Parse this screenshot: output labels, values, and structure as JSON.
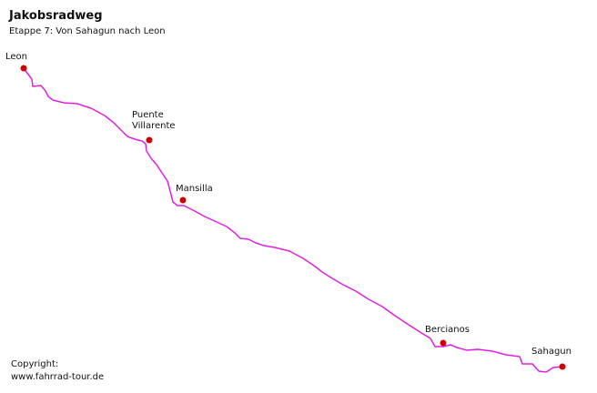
{
  "header": {
    "title": "Jakobsradweg",
    "subtitle": "Etappe 7: Von Sahagun nach Leon"
  },
  "places": [
    {
      "lines": [
        "Leon"
      ]
    },
    {
      "lines": [
        "Puente",
        "Villarente"
      ]
    },
    {
      "lines": [
        "Mansilla"
      ]
    },
    {
      "lines": [
        "Bercianos"
      ]
    },
    {
      "lines": [
        "Sahagun"
      ]
    }
  ],
  "copyright": [
    "Copyright:",
    "www.fahrrad-tour.de"
  ]
}
